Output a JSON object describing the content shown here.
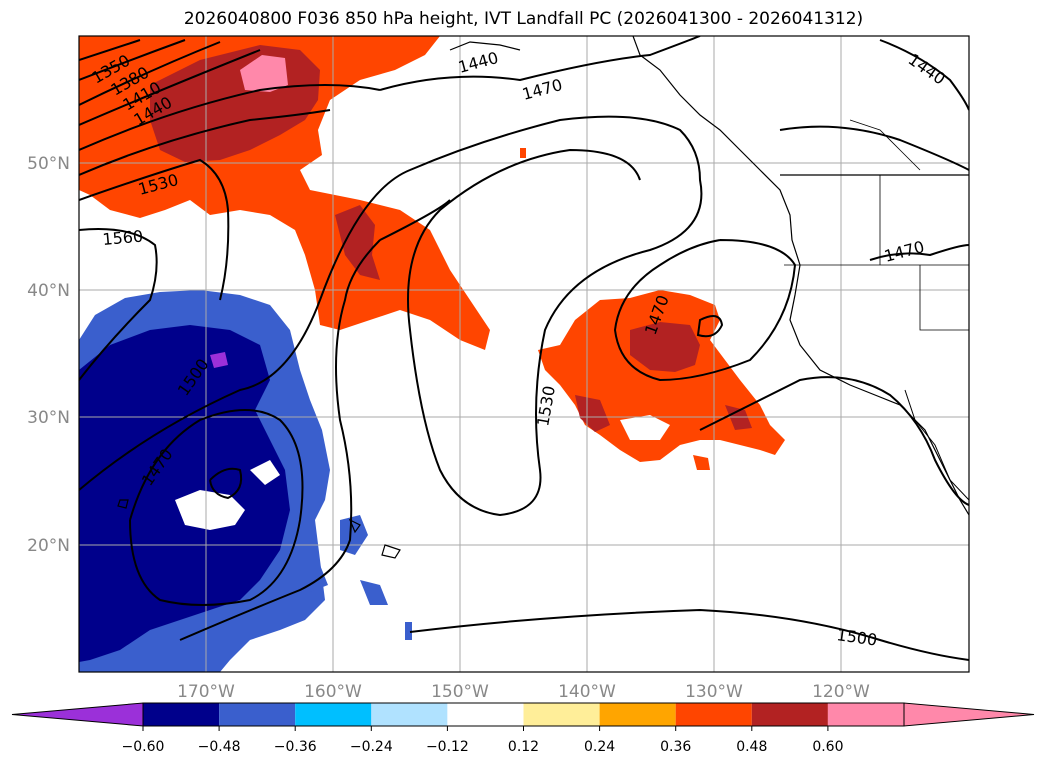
{
  "title": "2026040800 F036 850 hPa height, IVT Landfall PC (2026041300 - 2026041312)",
  "map": {
    "lat_labels": [
      "50°N",
      "40°N",
      "30°N",
      "20°N"
    ],
    "lon_labels": [
      "170°W",
      "160°W",
      "150°W",
      "140°W",
      "130°W",
      "120°W"
    ],
    "contour_labels": [
      "1350",
      "1380",
      "1410",
      "1440",
      "1530",
      "1560",
      "1440",
      "1470",
      "1440",
      "1470",
      "1470",
      "1530",
      "1500",
      "1470",
      "1500"
    ]
  },
  "colorbar": {
    "ticks": [
      "−0.60",
      "−0.48",
      "−0.36",
      "−0.24",
      "−0.12",
      "0.12",
      "0.24",
      "0.36",
      "0.48",
      "0.60"
    ],
    "colors": [
      "#9b30d9",
      "#00008b",
      "#3a5fcd",
      "#00bfff",
      "#b0e2ff",
      "#ffffff",
      "#ffee99",
      "#ffa500",
      "#ff4500",
      "#b22222",
      "#ff88aa",
      "#ff88aa"
    ]
  },
  "colors": {
    "land_outline": "#000000",
    "grid": "#aaaaaa",
    "tick_label": "#888888"
  }
}
